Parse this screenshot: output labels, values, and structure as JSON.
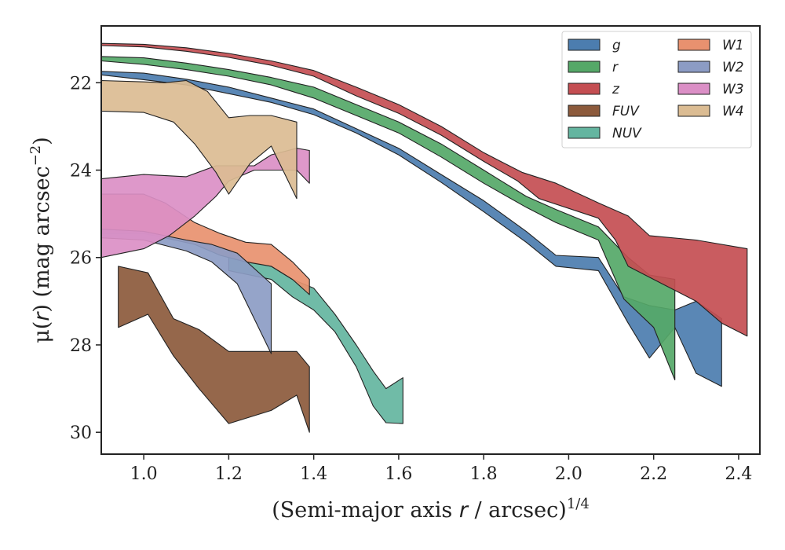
{
  "chart_data": {
    "type": "area",
    "xlabel": {
      "prefix": "(Semi-major axis ",
      "var": "r",
      "suffix": " / arcsec)",
      "sup": "1/4"
    },
    "ylabel": {
      "prefix": "μ(",
      "var": "r",
      "mid": ") (mag arcsec",
      "sup": "−2",
      "suffix": ")"
    },
    "xlim": [
      0.9,
      2.45
    ],
    "ylim": [
      30.5,
      20.7
    ],
    "y_inverted": true,
    "xticks": [
      1.0,
      1.2,
      1.4,
      1.6,
      1.8,
      2.0,
      2.2,
      2.4
    ],
    "xtick_labels": [
      "1.0",
      "1.2",
      "1.4",
      "1.6",
      "1.8",
      "2.0",
      "2.2",
      "2.4"
    ],
    "yticks": [
      22,
      24,
      26,
      28,
      30
    ],
    "ytick_labels": [
      "22",
      "24",
      "26",
      "28",
      "30"
    ],
    "legend_position": "top-right",
    "legend_columns": 2,
    "series": [
      {
        "name": "g",
        "color": "#4c7daf",
        "upper": [
          [
            0.9,
            21.74
          ],
          [
            1.0,
            21.78
          ],
          [
            1.1,
            21.92
          ],
          [
            1.2,
            22.1
          ],
          [
            1.3,
            22.35
          ],
          [
            1.4,
            22.6
          ],
          [
            1.5,
            23.05
          ],
          [
            1.6,
            23.5
          ],
          [
            1.7,
            24.1
          ],
          [
            1.8,
            24.7
          ],
          [
            1.9,
            25.4
          ],
          [
            1.97,
            25.95
          ],
          [
            2.07,
            26.0
          ],
          [
            2.13,
            26.9
          ],
          [
            2.19,
            27.1
          ],
          [
            2.25,
            27.2
          ],
          [
            2.3,
            27.0
          ],
          [
            2.36,
            27.4
          ]
        ],
        "lower": [
          [
            0.9,
            21.82
          ],
          [
            1.0,
            21.93
          ],
          [
            1.1,
            22.05
          ],
          [
            1.2,
            22.25
          ],
          [
            1.3,
            22.45
          ],
          [
            1.4,
            22.73
          ],
          [
            1.5,
            23.15
          ],
          [
            1.6,
            23.65
          ],
          [
            1.7,
            24.28
          ],
          [
            1.8,
            24.95
          ],
          [
            1.9,
            25.65
          ],
          [
            1.97,
            26.2
          ],
          [
            2.07,
            26.3
          ],
          [
            2.14,
            27.5
          ],
          [
            2.19,
            28.3
          ],
          [
            2.25,
            27.6
          ],
          [
            2.3,
            28.65
          ],
          [
            2.36,
            28.95
          ]
        ]
      },
      {
        "name": "r",
        "color": "#55a868",
        "upper": [
          [
            0.9,
            21.4
          ],
          [
            1.0,
            21.43
          ],
          [
            1.1,
            21.55
          ],
          [
            1.2,
            21.7
          ],
          [
            1.3,
            21.88
          ],
          [
            1.4,
            22.1
          ],
          [
            1.5,
            22.5
          ],
          [
            1.6,
            22.9
          ],
          [
            1.7,
            23.4
          ],
          [
            1.8,
            24.0
          ],
          [
            1.9,
            24.6
          ],
          [
            1.97,
            24.9
          ],
          [
            2.07,
            25.3
          ],
          [
            2.14,
            26.0
          ],
          [
            2.19,
            26.4
          ],
          [
            2.25,
            26.5
          ]
        ],
        "lower": [
          [
            0.9,
            21.5
          ],
          [
            1.0,
            21.58
          ],
          [
            1.1,
            21.7
          ],
          [
            1.2,
            21.85
          ],
          [
            1.3,
            22.05
          ],
          [
            1.4,
            22.35
          ],
          [
            1.5,
            22.75
          ],
          [
            1.6,
            23.15
          ],
          [
            1.7,
            23.7
          ],
          [
            1.8,
            24.3
          ],
          [
            1.9,
            24.85
          ],
          [
            1.97,
            25.2
          ],
          [
            2.07,
            25.6
          ],
          [
            2.13,
            26.95
          ],
          [
            2.2,
            27.6
          ],
          [
            2.25,
            28.8
          ]
        ]
      },
      {
        "name": "z",
        "color": "#c44e52",
        "upper": [
          [
            0.9,
            21.1
          ],
          [
            1.0,
            21.12
          ],
          [
            1.1,
            21.2
          ],
          [
            1.2,
            21.33
          ],
          [
            1.3,
            21.5
          ],
          [
            1.4,
            21.72
          ],
          [
            1.5,
            22.1
          ],
          [
            1.6,
            22.5
          ],
          [
            1.7,
            23.0
          ],
          [
            1.8,
            23.6
          ],
          [
            1.89,
            24.05
          ],
          [
            1.97,
            24.3
          ],
          [
            2.07,
            24.75
          ],
          [
            2.14,
            25.05
          ],
          [
            2.19,
            25.5
          ],
          [
            2.3,
            25.6
          ],
          [
            2.42,
            25.8
          ]
        ],
        "lower": [
          [
            0.9,
            21.15
          ],
          [
            1.0,
            21.18
          ],
          [
            1.1,
            21.28
          ],
          [
            1.2,
            21.42
          ],
          [
            1.3,
            21.6
          ],
          [
            1.4,
            21.85
          ],
          [
            1.5,
            22.3
          ],
          [
            1.6,
            22.7
          ],
          [
            1.7,
            23.2
          ],
          [
            1.8,
            23.8
          ],
          [
            1.88,
            24.25
          ],
          [
            1.93,
            24.65
          ],
          [
            2.07,
            25.1
          ],
          [
            2.11,
            25.6
          ],
          [
            2.14,
            26.2
          ],
          [
            2.2,
            26.5
          ],
          [
            2.25,
            26.75
          ],
          [
            2.3,
            27.0
          ],
          [
            2.36,
            27.5
          ],
          [
            2.42,
            27.8
          ]
        ]
      },
      {
        "name": "FUV",
        "color": "#8c5a3c",
        "upper": [
          [
            0.94,
            26.2
          ],
          [
            1.01,
            26.35
          ],
          [
            1.07,
            27.4
          ],
          [
            1.13,
            27.65
          ],
          [
            1.2,
            28.15
          ],
          [
            1.3,
            28.15
          ],
          [
            1.36,
            28.15
          ],
          [
            1.39,
            28.5
          ]
        ],
        "lower": [
          [
            0.94,
            27.6
          ],
          [
            1.01,
            27.3
          ],
          [
            1.07,
            28.25
          ],
          [
            1.13,
            29.0
          ],
          [
            1.2,
            29.8
          ],
          [
            1.3,
            29.5
          ],
          [
            1.36,
            29.15
          ],
          [
            1.39,
            30.0
          ]
        ]
      },
      {
        "name": "NUV",
        "color": "#64b5a0",
        "upper": [
          [
            1.2,
            26.0
          ],
          [
            1.3,
            26.2
          ],
          [
            1.35,
            26.5
          ],
          [
            1.4,
            26.7
          ],
          [
            1.45,
            27.3
          ],
          [
            1.5,
            28.0
          ],
          [
            1.54,
            28.6
          ],
          [
            1.57,
            29.0
          ],
          [
            1.61,
            28.75
          ]
        ],
        "lower": [
          [
            1.2,
            26.3
          ],
          [
            1.3,
            26.5
          ],
          [
            1.35,
            26.9
          ],
          [
            1.4,
            27.2
          ],
          [
            1.45,
            27.7
          ],
          [
            1.5,
            28.5
          ],
          [
            1.54,
            29.4
          ],
          [
            1.57,
            29.78
          ],
          [
            1.61,
            29.8
          ]
        ]
      },
      {
        "name": "W1",
        "color": "#e8916f",
        "upper": [
          [
            0.9,
            24.55
          ],
          [
            1.0,
            24.55
          ],
          [
            1.05,
            24.75
          ],
          [
            1.12,
            25.2
          ],
          [
            1.18,
            25.45
          ],
          [
            1.24,
            25.65
          ],
          [
            1.3,
            25.7
          ],
          [
            1.35,
            26.1
          ],
          [
            1.39,
            26.5
          ]
        ],
        "lower": [
          [
            0.9,
            25.45
          ],
          [
            1.0,
            25.45
          ],
          [
            1.05,
            25.55
          ],
          [
            1.12,
            25.7
          ],
          [
            1.18,
            25.95
          ],
          [
            1.24,
            26.1
          ],
          [
            1.3,
            26.2
          ],
          [
            1.35,
            26.5
          ],
          [
            1.39,
            26.85
          ]
        ]
      },
      {
        "name": "W2",
        "color": "#8c9cc4",
        "upper": [
          [
            0.9,
            25.35
          ],
          [
            1.0,
            25.4
          ],
          [
            1.1,
            25.6
          ],
          [
            1.16,
            25.7
          ],
          [
            1.22,
            25.9
          ],
          [
            1.3,
            26.6
          ]
        ],
        "lower": [
          [
            0.9,
            25.55
          ],
          [
            1.0,
            25.6
          ],
          [
            1.1,
            25.85
          ],
          [
            1.16,
            26.1
          ],
          [
            1.22,
            26.6
          ],
          [
            1.3,
            28.2
          ]
        ]
      },
      {
        "name": "W3",
        "color": "#db8fc6",
        "upper": [
          [
            0.9,
            24.2
          ],
          [
            1.0,
            24.1
          ],
          [
            1.1,
            24.15
          ],
          [
            1.17,
            23.9
          ],
          [
            1.2,
            23.9
          ],
          [
            1.26,
            23.9
          ],
          [
            1.3,
            23.65
          ],
          [
            1.36,
            23.5
          ],
          [
            1.39,
            23.55
          ]
        ],
        "lower": [
          [
            0.9,
            26.0
          ],
          [
            1.0,
            25.8
          ],
          [
            1.06,
            25.5
          ],
          [
            1.12,
            25.05
          ],
          [
            1.17,
            24.6
          ],
          [
            1.2,
            24.25
          ],
          [
            1.26,
            24.0
          ],
          [
            1.3,
            24.0
          ],
          [
            1.36,
            24.0
          ],
          [
            1.39,
            24.3
          ]
        ]
      },
      {
        "name": "W4",
        "color": "#dbbc93",
        "upper": [
          [
            0.9,
            21.95
          ],
          [
            1.0,
            21.98
          ],
          [
            1.05,
            22.0
          ],
          [
            1.1,
            21.95
          ],
          [
            1.15,
            22.2
          ],
          [
            1.2,
            22.8
          ],
          [
            1.25,
            22.75
          ],
          [
            1.3,
            22.75
          ],
          [
            1.36,
            22.9
          ]
        ],
        "lower": [
          [
            0.9,
            22.65
          ],
          [
            1.0,
            22.68
          ],
          [
            1.07,
            22.9
          ],
          [
            1.12,
            23.4
          ],
          [
            1.17,
            24.05
          ],
          [
            1.2,
            24.55
          ],
          [
            1.25,
            23.85
          ],
          [
            1.3,
            23.45
          ],
          [
            1.36,
            24.65
          ]
        ]
      }
    ]
  }
}
